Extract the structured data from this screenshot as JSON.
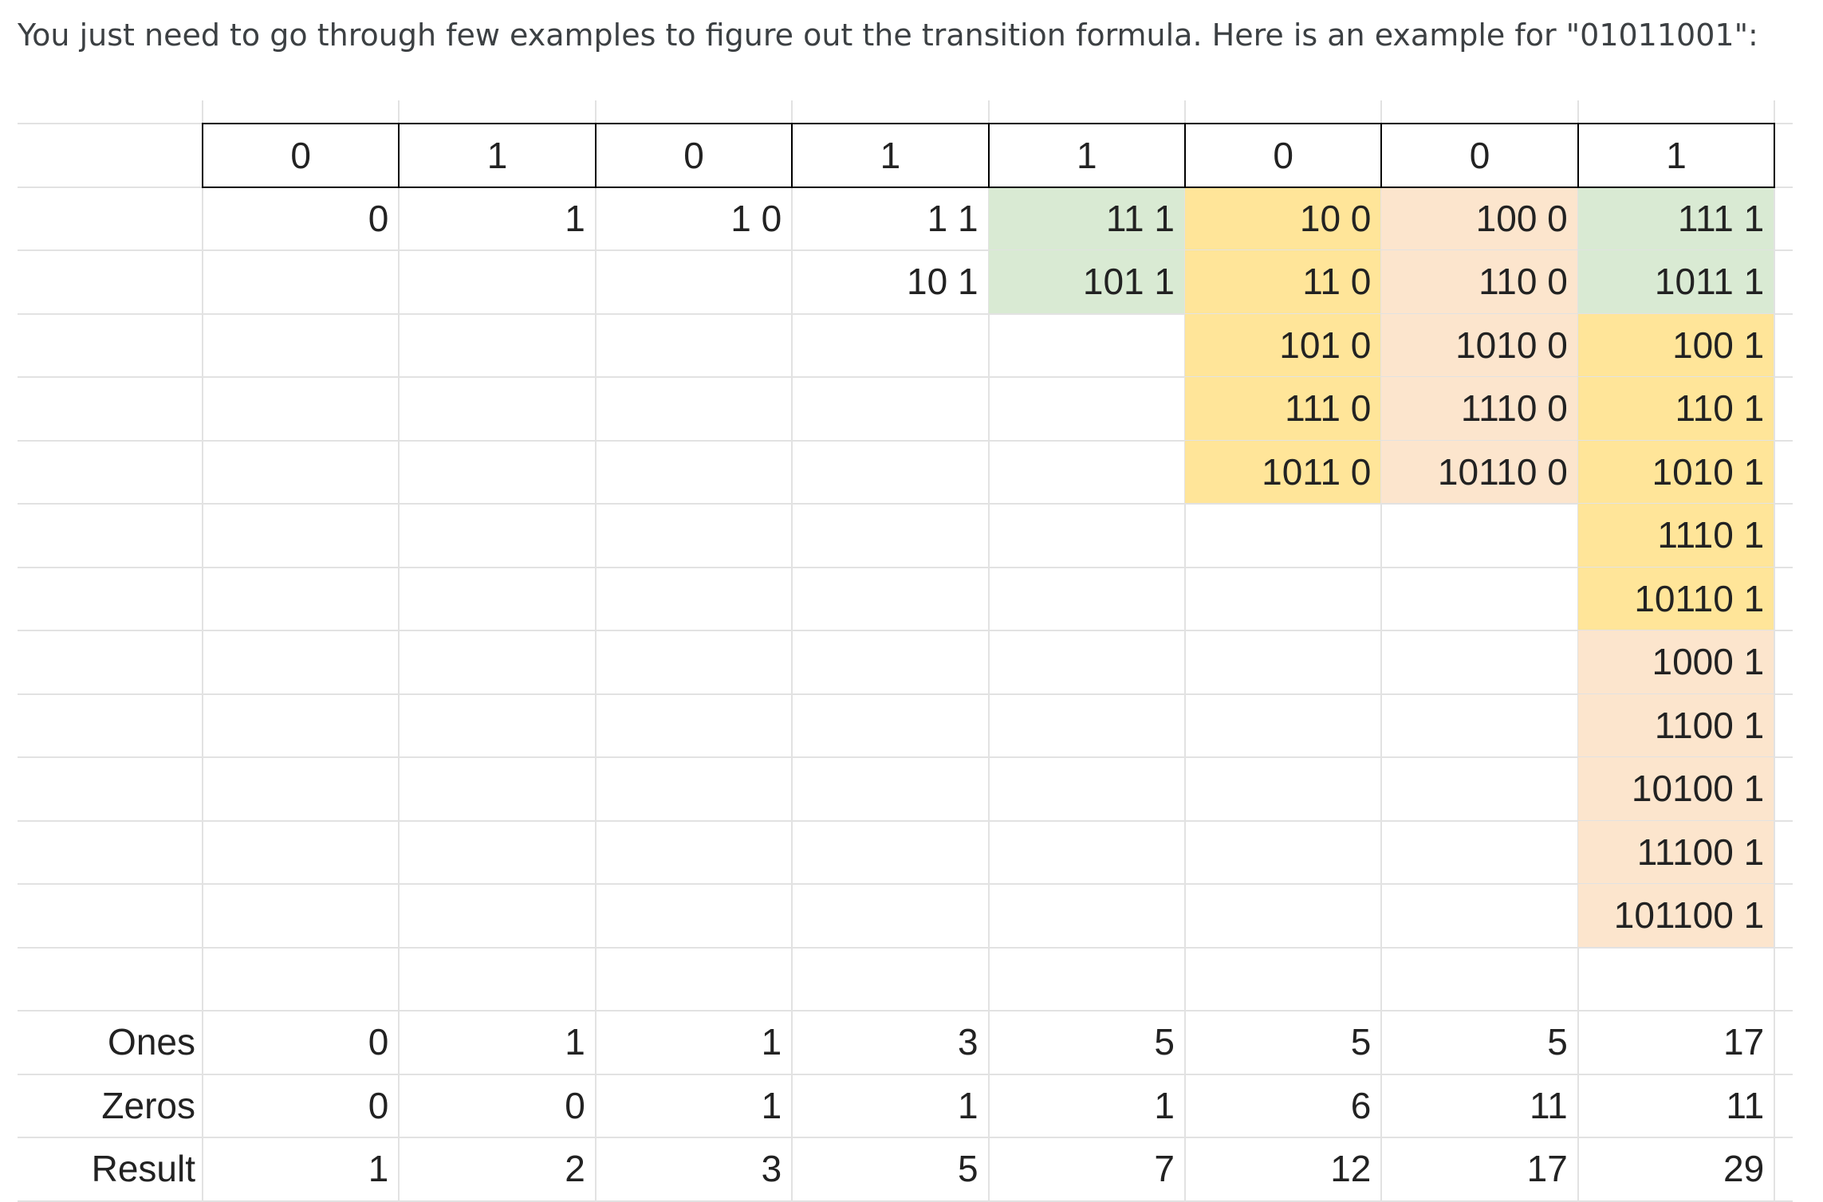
{
  "intro_text": "You just need to go through few examples to figure out the transition formula. Here is an example for \"01011001\":",
  "colors": {
    "green": "#d9ead3",
    "yellow": "#ffe599",
    "peach": "#fce5cd",
    "grid": "#e2e2e2",
    "border": "#000000"
  },
  "header_bits": [
    "0",
    "1",
    "0",
    "1",
    "1",
    "0",
    "0",
    "1"
  ],
  "columns": [
    {
      "cells": [
        {
          "text": "0",
          "fill": ""
        }
      ]
    },
    {
      "cells": [
        {
          "text": "1",
          "fill": ""
        }
      ]
    },
    {
      "cells": [
        {
          "text": "1 0",
          "fill": ""
        }
      ]
    },
    {
      "cells": [
        {
          "text": "1 1",
          "fill": ""
        },
        {
          "text": "10 1",
          "fill": ""
        }
      ]
    },
    {
      "cells": [
        {
          "text": "11 1",
          "fill": "green"
        },
        {
          "text": "101 1",
          "fill": "green"
        }
      ]
    },
    {
      "cells": [
        {
          "text": "10 0",
          "fill": "yellow"
        },
        {
          "text": "11 0",
          "fill": "yellow"
        },
        {
          "text": "101 0",
          "fill": "yellow"
        },
        {
          "text": "111 0",
          "fill": "yellow"
        },
        {
          "text": "1011 0",
          "fill": "yellow"
        }
      ]
    },
    {
      "cells": [
        {
          "text": "100 0",
          "fill": "peach"
        },
        {
          "text": "110 0",
          "fill": "peach"
        },
        {
          "text": "1010 0",
          "fill": "peach"
        },
        {
          "text": "1110 0",
          "fill": "peach"
        },
        {
          "text": "10110 0",
          "fill": "peach"
        }
      ]
    },
    {
      "cells": [
        {
          "text": "111 1",
          "fill": "green"
        },
        {
          "text": "1011 1",
          "fill": "green"
        },
        {
          "text": "100 1",
          "fill": "yellow"
        },
        {
          "text": "110 1",
          "fill": "yellow"
        },
        {
          "text": "1010 1",
          "fill": "yellow"
        },
        {
          "text": "1110 1",
          "fill": "yellow"
        },
        {
          "text": "10110 1",
          "fill": "yellow"
        },
        {
          "text": "1000 1",
          "fill": "peach"
        },
        {
          "text": "1100 1",
          "fill": "peach"
        },
        {
          "text": "10100 1",
          "fill": "peach"
        },
        {
          "text": "11100 1",
          "fill": "peach"
        },
        {
          "text": "101100 1",
          "fill": "peach"
        }
      ]
    }
  ],
  "summary_rows": [
    {
      "label": "Ones",
      "values": [
        "0",
        "1",
        "1",
        "3",
        "5",
        "5",
        "5",
        "17"
      ]
    },
    {
      "label": "Zeros",
      "values": [
        "0",
        "0",
        "1",
        "1",
        "1",
        "6",
        "11",
        "11"
      ]
    },
    {
      "label": "Result",
      "values": [
        "1",
        "2",
        "3",
        "5",
        "7",
        "12",
        "17",
        "29"
      ]
    }
  ]
}
